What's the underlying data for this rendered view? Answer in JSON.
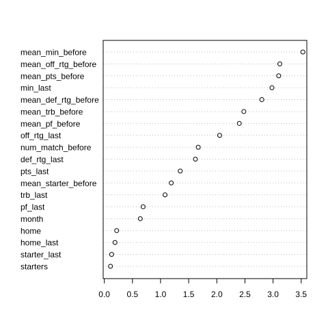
{
  "chart_data": {
    "type": "scatter",
    "subtype": "dotchart",
    "title": "",
    "xlabel": "",
    "ylabel": "",
    "grid": "dotted horizontal lines per category",
    "xlim": [
      -0.02,
      3.6
    ],
    "x_ticks": [
      "0.0",
      "0.5",
      "1.0",
      "1.5",
      "2.0",
      "2.5",
      "3.0",
      "3.5"
    ],
    "x_tick_values": [
      0.0,
      0.5,
      1.0,
      1.5,
      2.0,
      2.5,
      3.0,
      3.5
    ],
    "categories": [
      "mean_min_before",
      "mean_off_rtg_before",
      "mean_pts_before",
      "min_last",
      "mean_def_rtg_before",
      "mean_trb_before",
      "mean_pf_before",
      "off_rtg_last",
      "num_match_before",
      "def_rtg_last",
      "pts_last",
      "mean_starter_before",
      "trb_last",
      "pf_last",
      "month",
      "home",
      "home_last",
      "starter_last",
      "starters"
    ],
    "values": [
      3.53,
      3.12,
      3.1,
      2.98,
      2.8,
      2.48,
      2.4,
      2.05,
      1.67,
      1.62,
      1.35,
      1.19,
      1.08,
      0.69,
      0.64,
      0.22,
      0.19,
      0.13,
      0.11
    ]
  }
}
